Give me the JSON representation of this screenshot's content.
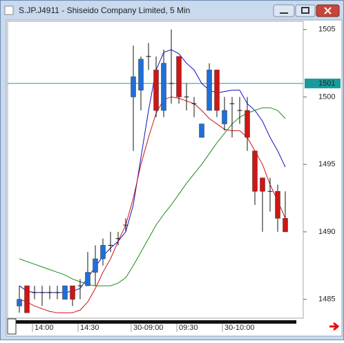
{
  "chart_data": {
    "type": "candlestick",
    "title": "S.JP.J4911 - Shiseido Company Limited, 5 Min",
    "categories": [
      null,
      null,
      "14:00",
      null,
      null,
      null,
      null,
      null,
      "14:30",
      null,
      null,
      null,
      null,
      null,
      null,
      "30-09:00",
      null,
      null,
      null,
      null,
      null,
      "09:30",
      null,
      null,
      null,
      null,
      null,
      "30-10:00",
      null,
      null,
      null,
      null,
      null,
      null,
      null,
      null
    ],
    "open": [
      1484.5,
      1486,
      1485.5,
      1485.5,
      1485.5,
      1485.5,
      1485,
      1486,
      1486,
      1486,
      1487,
      1488,
      1489,
      1489.5,
      1490.5,
      1500,
      1500.5,
      1503,
      1502,
      1499,
      1501,
      1503,
      1500,
      1499.5,
      1497,
      1499,
      1502,
      1498,
      1499.5,
      1499,
      1499,
      1496,
      1494,
      1493,
      1493,
      1491
    ],
    "high": [
      1486,
      1486,
      1486,
      1486,
      1486,
      1486,
      1486,
      1486,
      1486.5,
      1488.5,
      1489,
      1489.5,
      1490,
      1490,
      1491,
      1503.8,
      1503,
      1504,
      1503,
      1503.5,
      1505,
      1503,
      1501,
      1500,
      1498,
      1502.5,
      1502,
      1500,
      1500,
      1500,
      1500,
      1496,
      1494,
      1494,
      1493.5,
      1493
    ],
    "low": [
      1484,
      1484,
      1485,
      1484.5,
      1485,
      1485,
      1485,
      1484.5,
      1485,
      1486,
      1486,
      1487.5,
      1488.5,
      1489,
      1490,
      1496,
      1499,
      1502,
      1498.5,
      1498.5,
      1499.5,
      1499.5,
      1499,
      1498.5,
      1497,
      1499,
      1498.5,
      1497.5,
      1497,
      1498,
      1496,
      1492,
      1490,
      1491.5,
      1490,
      1490
    ],
    "close": [
      1485,
      1484,
      1485.5,
      1485.5,
      1485.5,
      1485.5,
      1486,
      1485,
      1486,
      1487,
      1488,
      1489,
      1489,
      1489.5,
      1490.5,
      1501.5,
      1502.8,
      1503,
      1499,
      1502.5,
      1501,
      1500,
      1500,
      1499.5,
      1498,
      1502,
      1499,
      1499,
      1499.5,
      1499,
      1497,
      1493,
      1493,
      1493,
      1491,
      1490
    ],
    "up_color": "#1f6fd8",
    "down_color": "#d01515",
    "flat_color": "#111111",
    "series": [
      {
        "color": "#1010c0",
        "values": [
          1486,
          1485.6,
          1485.5,
          1485.5,
          1485.5,
          1485.5,
          1485.5,
          1485.6,
          1485.8,
          1486.6,
          1487.4,
          1488.2,
          1488.8,
          1489.3,
          1490,
          1492,
          1495.5,
          1499,
          1502,
          1503.3,
          1503.5,
          1503.2,
          1502.5,
          1502,
          1501,
          1500.5,
          1500.3,
          1500.4,
          1500.5,
          1500.5,
          1499.5,
          1499,
          1498.2,
          1497,
          1496,
          1494.8
        ]
      },
      {
        "color": "#d01010",
        "values": [
          1485,
          1484.8,
          1484.5,
          1484.3,
          1484.1,
          1484,
          1484,
          1484,
          1484.2,
          1484.8,
          1485.8,
          1487,
          1488,
          1489.3,
          1490.5,
          1492.5,
          1495,
          1497,
          1498.8,
          1499.8,
          1500,
          1499.9,
          1499.7,
          1499.5,
          1499,
          1498.4,
          1498,
          1497.6,
          1497.5,
          1497.5,
          1497,
          1496,
          1495,
          1493.5,
          1492.3,
          1491
        ]
      },
      {
        "color": "#1a8a1a",
        "values": [
          1488,
          1487.8,
          1487.6,
          1487.4,
          1487.2,
          1487,
          1486.8,
          1486.5,
          1486.3,
          1486.1,
          1486,
          1486,
          1486,
          1486.2,
          1486.6,
          1487.5,
          1488.5,
          1489.5,
          1490.5,
          1491.3,
          1492,
          1492.8,
          1493.6,
          1494.3,
          1495,
          1495.8,
          1496.6,
          1497.3,
          1498,
          1498.5,
          1498.8,
          1499,
          1499.2,
          1499.2,
          1499,
          1498.4
        ]
      }
    ],
    "price_line": 1501,
    "price_line_color": "#1a9a9a",
    "ylim": [
      1483.6,
      1505.6
    ],
    "yticks": [
      1485,
      1490,
      1495,
      1500,
      1505
    ]
  }
}
